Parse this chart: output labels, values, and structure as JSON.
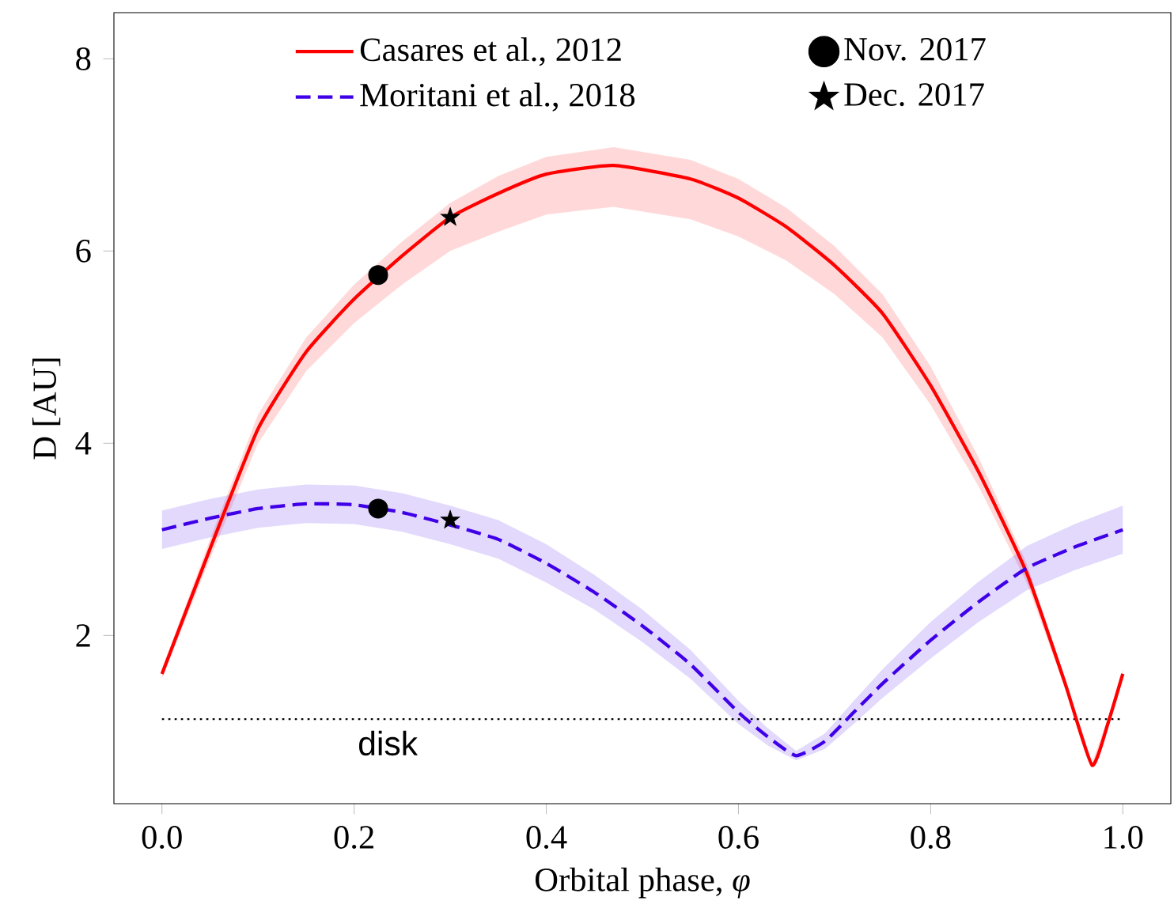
{
  "chart_data": {
    "type": "line",
    "xlabel": "Orbital phase, *φ*",
    "ylabel": "D [AU]",
    "xlim": [
      -0.05,
      1.05
    ],
    "ylim": [
      0.25,
      8.48
    ],
    "xticks": [
      {
        "value": 0,
        "label": "0.0"
      },
      {
        "value": 0.2,
        "label": "0.2"
      },
      {
        "value": 0.4,
        "label": "0.4"
      },
      {
        "value": 0.6,
        "label": "0.6"
      },
      {
        "value": 0.8,
        "label": "0.8"
      },
      {
        "value": 1.0,
        "label": "1.0"
      }
    ],
    "yticks": [
      2,
      4,
      6,
      8
    ],
    "legend": "top",
    "series": [
      {
        "name": "Casares et al., 2012",
        "color": "#ff0000",
        "line_style": "solid",
        "marker": "none",
        "x": [
          0,
          0.05,
          0.1,
          0.15,
          0.2,
          0.25,
          0.3,
          0.35,
          0.4,
          0.47,
          0.55,
          0.6,
          0.65,
          0.7,
          0.75,
          0.8,
          0.85,
          0.9,
          0.94,
          0.968,
          0.985,
          1.0
        ],
        "values": [
          1.6,
          2.9,
          4.15,
          4.95,
          5.5,
          5.95,
          6.35,
          6.6,
          6.8,
          6.89,
          6.75,
          6.55,
          6.25,
          5.85,
          5.35,
          4.6,
          3.7,
          2.65,
          1.5,
          0.65,
          1.1,
          1.6
        ],
        "lower": [
          1.55,
          2.8,
          4.0,
          4.75,
          5.25,
          5.65,
          6.0,
          6.2,
          6.38,
          6.46,
          6.33,
          6.15,
          5.9,
          5.55,
          5.1,
          4.4,
          3.55,
          2.55,
          1.45,
          0.62,
          1.05,
          1.55
        ],
        "upper": [
          1.65,
          3.0,
          4.3,
          5.1,
          5.65,
          6.1,
          6.5,
          6.78,
          6.98,
          7.08,
          6.95,
          6.75,
          6.45,
          6.05,
          5.55,
          4.8,
          3.85,
          2.75,
          1.55,
          0.68,
          1.15,
          1.65
        ]
      },
      {
        "name": "Nov. 2017",
        "type": "scatter",
        "color": "#000000",
        "marker": "circle",
        "x": [
          0.225,
          0.225
        ],
        "values": [
          5.75,
          3.32
        ]
      },
      {
        "name": "Moritani et al., 2018",
        "color": "#3f00e8",
        "line_style": "dashed",
        "marker": "none",
        "x": [
          0,
          0.05,
          0.1,
          0.15,
          0.2,
          0.25,
          0.3,
          0.35,
          0.4,
          0.45,
          0.5,
          0.55,
          0.6,
          0.63,
          0.66,
          0.69,
          0.72,
          0.75,
          0.8,
          0.85,
          0.9,
          0.95,
          1.0
        ],
        "values": [
          3.1,
          3.22,
          3.32,
          3.37,
          3.36,
          3.28,
          3.15,
          3.0,
          2.75,
          2.45,
          2.1,
          1.7,
          1.2,
          0.95,
          0.75,
          0.9,
          1.2,
          1.5,
          1.95,
          2.35,
          2.7,
          2.92,
          3.1
        ],
        "lower": [
          2.9,
          3.02,
          3.12,
          3.17,
          3.16,
          3.08,
          2.95,
          2.8,
          2.55,
          2.27,
          1.93,
          1.55,
          1.08,
          0.86,
          0.7,
          0.82,
          1.08,
          1.35,
          1.76,
          2.14,
          2.47,
          2.68,
          2.85
        ],
        "upper": [
          3.3,
          3.42,
          3.52,
          3.57,
          3.56,
          3.48,
          3.35,
          3.2,
          2.95,
          2.63,
          2.27,
          1.85,
          1.32,
          1.04,
          0.8,
          0.98,
          1.32,
          1.65,
          2.14,
          2.56,
          2.93,
          3.16,
          3.35
        ]
      },
      {
        "name": "Dec. 2017",
        "type": "scatter",
        "color": "#000000",
        "marker": "star",
        "x": [
          0.3,
          0.3
        ],
        "values": [
          6.35,
          3.2
        ]
      }
    ],
    "ref_lines": [
      {
        "axis": "y",
        "value": 1.13,
        "label": "disk",
        "color": "#000000",
        "line_style": "dotted"
      }
    ]
  }
}
